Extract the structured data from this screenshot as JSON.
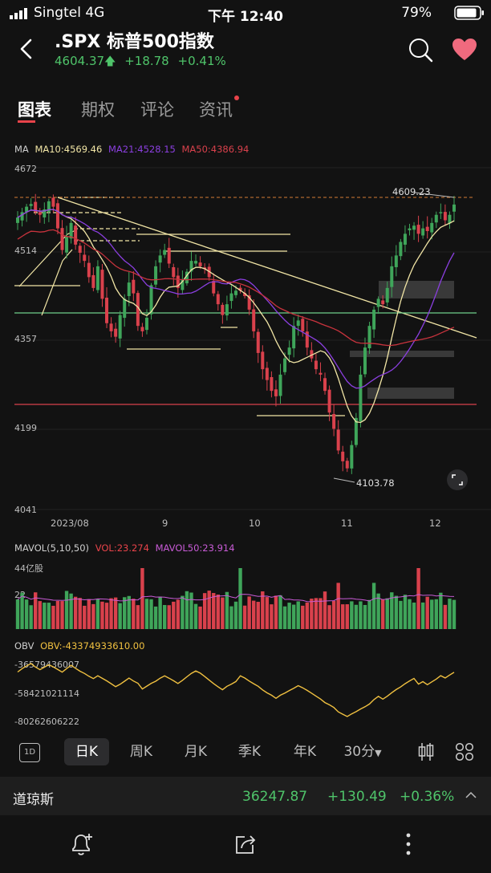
{
  "status": {
    "carrier": "Singtel  4G",
    "time": "下午 12:40",
    "battery": "79%"
  },
  "header": {
    "title": ".SPX  标普500指数",
    "price": "4604.37",
    "change": "+18.78",
    "pct": "+0.41%"
  },
  "tabs": [
    {
      "label": "图表",
      "active": true
    },
    {
      "label": "期权"
    },
    {
      "label": "评论"
    },
    {
      "label": "资讯",
      "dot": true
    }
  ],
  "main_legend": {
    "prefix": "MA",
    "ma10": "MA10:4569.46",
    "ma21": "MA21:4528.15",
    "ma50": "MA50:4386.94"
  },
  "price_axis": [
    "4672",
    "4514",
    "4357",
    "4199",
    "4041"
  ],
  "date_axis": [
    "2023/08",
    "9",
    "10",
    "11",
    "12"
  ],
  "annotations": {
    "high": "4609.23",
    "low": "4103.78"
  },
  "vol_legend": {
    "prefix": "MAVOL(5,10,50)",
    "vol": "VOL:23.274",
    "mavol50": "MAVOL50:23.914"
  },
  "vol_axis": [
    "44亿股",
    "22"
  ],
  "obv_legend": {
    "prefix": "OBV",
    "obv": "OBV:-43374933610.00"
  },
  "obv_axis": [
    "-36579436007",
    "-58421021114",
    "-80262606222"
  ],
  "toolbar": {
    "d1": "1D",
    "day": "日K",
    "week": "周K",
    "month": "月K",
    "season": "季K",
    "year": "年K",
    "min30": "30分"
  },
  "ticker": {
    "name": "道琼斯",
    "price": "36247.87",
    "change": "+130.49",
    "pct": "+0.36%"
  },
  "colors": {
    "up": "#3fa55a",
    "down": "#d9414c",
    "ma10": "#f2e6a6",
    "ma21": "#8b3fe0",
    "ma50": "#c8333d",
    "accent": "#f0c040"
  },
  "chart_data": {
    "type": "candlestick",
    "ylim": [
      4041,
      4672
    ],
    "high": 4609.23,
    "low": 4103.78,
    "indicators": {
      "MA10": 4569.46,
      "MA21": 4528.15,
      "MA50": 4386.94
    },
    "closes": [
      4580,
      4590,
      4600,
      4605,
      4590,
      4585,
      4595,
      4610,
      4600,
      4560,
      4520,
      4545,
      4570,
      4530,
      4515,
      4500,
      4470,
      4450,
      4490,
      4430,
      4385,
      4370,
      4360,
      4400,
      4430,
      4460,
      4440,
      4380,
      4370,
      4395,
      4455,
      4490,
      4510,
      4520,
      4495,
      4470,
      4450,
      4465,
      4480,
      4500,
      4500,
      4490,
      4485,
      4470,
      4440,
      4420,
      4400,
      4420,
      4440,
      4445,
      4445,
      4435,
      4410,
      4370,
      4330,
      4300,
      4280,
      4260,
      4250,
      4290,
      4320,
      4340,
      4380,
      4390,
      4370,
      4340,
      4320,
      4300,
      4290,
      4260,
      4220,
      4190,
      4150,
      4130,
      4117,
      4160,
      4210,
      4290,
      4340,
      4380,
      4410,
      4430,
      4420,
      4450,
      4490,
      4510,
      4535,
      4550,
      4560,
      4565,
      4550,
      4560,
      4555,
      4570,
      4585,
      4590,
      4575,
      4585,
      4604
    ],
    "volume": {
      "latest": 23.274,
      "mavol50": 23.914,
      "unit": "亿股"
    },
    "obv_latest": -43374933610.0
  }
}
